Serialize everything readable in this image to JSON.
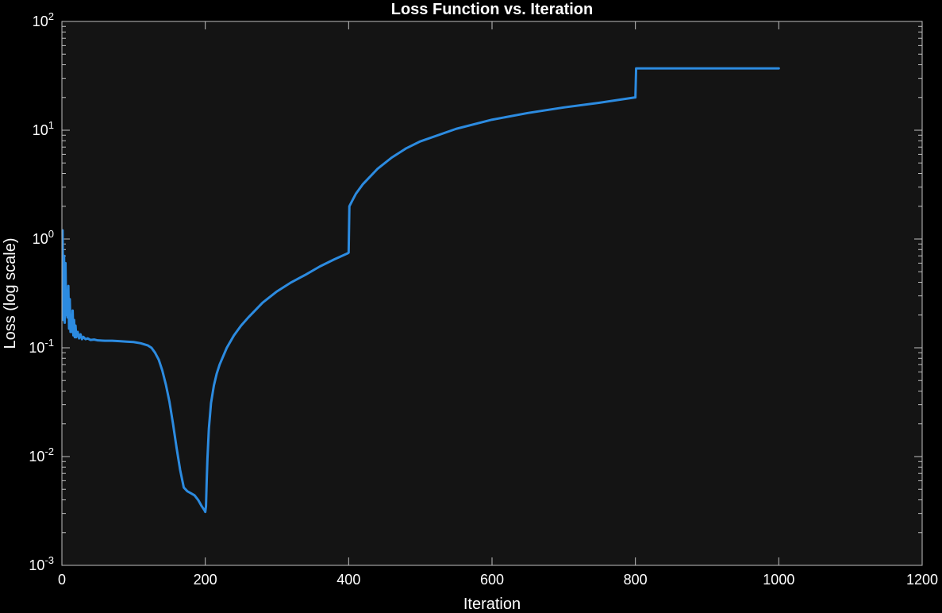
{
  "chart_data": {
    "type": "line",
    "title": "Loss Function vs. Iteration",
    "xlabel": "Iteration",
    "ylabel": "Loss (log scale)",
    "xlim": [
      0,
      1200
    ],
    "ylim": [
      0.001,
      100
    ],
    "yscale": "log",
    "grid": false,
    "x_ticks": [
      0,
      200,
      400,
      600,
      800,
      1000,
      1200
    ],
    "x_tick_labels": [
      "0",
      "200",
      "400",
      "600",
      "800",
      "1000",
      "1200"
    ],
    "y_ticks": [
      0.001,
      0.01,
      0.1,
      1,
      10,
      100
    ],
    "y_tick_labels": [
      {
        "base": "10",
        "exp": "-3"
      },
      {
        "base": "10",
        "exp": "-2"
      },
      {
        "base": "10",
        "exp": "-1"
      },
      {
        "base": "10",
        "exp": "0"
      },
      {
        "base": "10",
        "exp": "1"
      },
      {
        "base": "10",
        "exp": "2"
      }
    ],
    "series": [
      {
        "color": "#2c8be0",
        "x": [
          1,
          2,
          3,
          4,
          5,
          6,
          7,
          8,
          9,
          10,
          11,
          12,
          13,
          14,
          15,
          16,
          17,
          18,
          19,
          20,
          22,
          24,
          26,
          28,
          30,
          33,
          36,
          40,
          45,
          50,
          60,
          70,
          80,
          90,
          100,
          110,
          120,
          125,
          130,
          135,
          140,
          145,
          150,
          155,
          160,
          165,
          170,
          175,
          180,
          185,
          190,
          195,
          199,
          200,
          201,
          202,
          203,
          205,
          208,
          212,
          216,
          220,
          230,
          240,
          250,
          260,
          280,
          300,
          320,
          340,
          360,
          380,
          399,
          400,
          401,
          405,
          410,
          420,
          440,
          460,
          480,
          500,
          550,
          600,
          650,
          700,
          750,
          799,
          800,
          801,
          850,
          900,
          950,
          1000
        ],
        "y": [
          1.2,
          0.18,
          0.7,
          0.17,
          0.6,
          0.2,
          0.22,
          0.19,
          0.37,
          0.15,
          0.28,
          0.14,
          0.18,
          0.14,
          0.22,
          0.13,
          0.18,
          0.125,
          0.16,
          0.125,
          0.14,
          0.122,
          0.133,
          0.12,
          0.126,
          0.12,
          0.122,
          0.118,
          0.119,
          0.117,
          0.116,
          0.116,
          0.115,
          0.114,
          0.113,
          0.11,
          0.105,
          0.1,
          0.09,
          0.078,
          0.062,
          0.046,
          0.032,
          0.02,
          0.012,
          0.0075,
          0.0052,
          0.0048,
          0.0046,
          0.0044,
          0.004,
          0.0035,
          0.0032,
          0.0031,
          0.0035,
          0.006,
          0.0095,
          0.018,
          0.031,
          0.045,
          0.058,
          0.07,
          0.1,
          0.13,
          0.16,
          0.19,
          0.26,
          0.33,
          0.4,
          0.47,
          0.56,
          0.65,
          0.74,
          0.75,
          2.0,
          2.25,
          2.6,
          3.2,
          4.4,
          5.6,
          6.8,
          7.9,
          10.3,
          12.5,
          14.4,
          16.2,
          17.9,
          20.0,
          20.0,
          37.0,
          37.0,
          37.0,
          37.0,
          37.0
        ]
      }
    ]
  }
}
